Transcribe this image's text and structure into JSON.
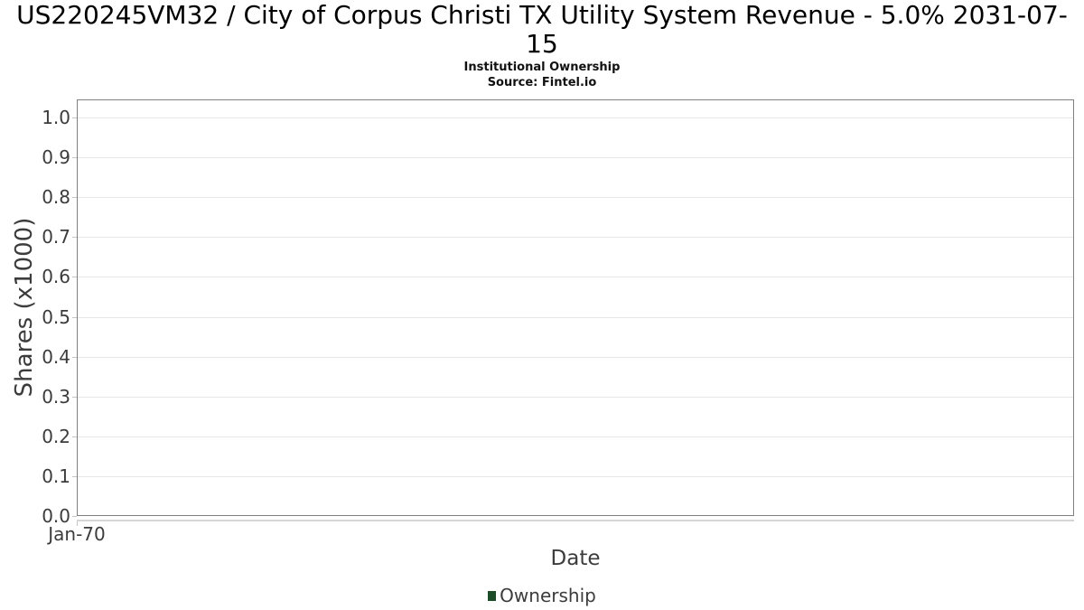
{
  "chart_data": {
    "type": "line",
    "title": "US220245VM32 / City of Corpus Christi TX Utility System Revenue - 5.0% 2031-07-15",
    "subtitle": "Institutional Ownership",
    "source": "Source: Fintel.io",
    "xlabel": "Date",
    "ylabel": "Shares (x1000)",
    "x_ticks": [
      "Jan-70"
    ],
    "x_tick_fractions": [
      0
    ],
    "y_ticks": [
      "0.0",
      "0.1",
      "0.2",
      "0.3",
      "0.4",
      "0.5",
      "0.6",
      "0.7",
      "0.8",
      "0.9",
      "1.0"
    ],
    "ylim": [
      0.0,
      1.05
    ],
    "grid": true,
    "legend_position": "bottom",
    "series": [
      {
        "name": "Ownership",
        "color": "#1d4d28",
        "values": []
      }
    ]
  }
}
